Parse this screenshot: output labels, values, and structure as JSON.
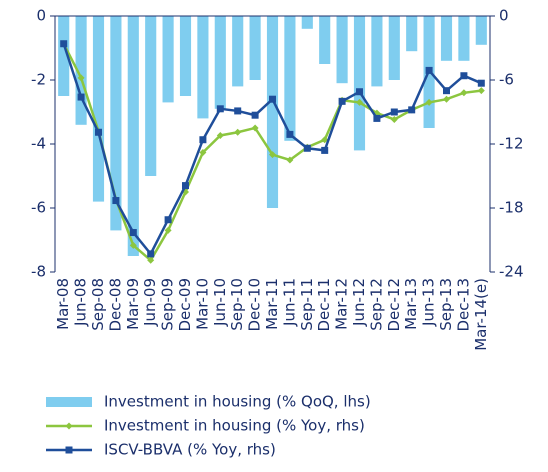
{
  "chart_data": {
    "type": "bar",
    "categories": [
      "Mar-08",
      "Jun-08",
      "Sep-08",
      "Dec-08",
      "Mar-09",
      "Jun-09",
      "Sep-09",
      "Dec-09",
      "Mar-10",
      "Jun-10",
      "Sep-10",
      "Dec-10",
      "Mar-11",
      "Jun-11",
      "Sep-11",
      "Dec-11",
      "Mar-12",
      "Jun-12",
      "Sep-12",
      "Dec-12",
      "Mar-13",
      "Jun-13",
      "Sep-13",
      "Dec-13",
      "Mar-14(e)"
    ],
    "series": [
      {
        "name": "Investment in housing (% QoQ, lhs)",
        "type": "bar",
        "axis": "y",
        "color": "#7fcdef",
        "values": [
          -2.5,
          -3.4,
          -5.8,
          -6.7,
          -7.5,
          -5.0,
          -2.7,
          -2.5,
          -3.2,
          -2.9,
          -2.2,
          -2.0,
          -6.0,
          -3.9,
          -0.4,
          -1.5,
          -2.1,
          -4.2,
          -2.2,
          -2.0,
          -1.1,
          -3.5,
          -1.4,
          -1.4,
          -0.9
        ]
      },
      {
        "name": "Investment in housing (% Yoy, rhs)",
        "type": "line",
        "marker": "diamond",
        "axis": "y2",
        "color": "#8cc63f",
        "values": [
          -2.6,
          -5.8,
          -10.8,
          -17.2,
          -21.5,
          -22.9,
          -20.1,
          -16.5,
          -12.8,
          -11.2,
          -10.9,
          -10.5,
          -13.0,
          -13.5,
          -12.3,
          -11.6,
          -7.9,
          -8.1,
          -9.1,
          -9.7,
          -8.8,
          -8.1,
          -7.8,
          -7.2,
          -7.0
        ]
      },
      {
        "name": "ISCV-BBVA (% Yoy, rhs)",
        "type": "line",
        "marker": "square",
        "axis": "y2",
        "color": "#1f4e9a",
        "values": [
          -2.6,
          -7.6,
          -10.9,
          -17.3,
          -20.3,
          -22.3,
          -19.1,
          -15.9,
          -11.6,
          -8.7,
          -8.9,
          -9.3,
          -7.8,
          -11.1,
          -12.4,
          -12.6,
          -8.0,
          -7.1,
          -9.6,
          -9.0,
          -8.8,
          -5.1,
          -7.0,
          -5.6,
          -6.3
        ]
      }
    ],
    "ylim": [
      -8,
      0
    ],
    "yticks": [
      0,
      -2,
      -4,
      -6,
      -8
    ],
    "y2lim": [
      -24,
      0
    ],
    "y2ticks": [
      0,
      -6,
      -12,
      -18,
      -24
    ],
    "legend": "bottom"
  }
}
